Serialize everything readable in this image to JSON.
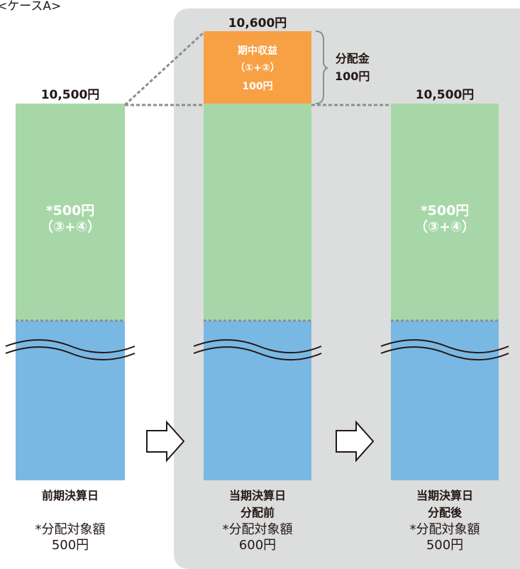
{
  "case_label": "<ケースA>",
  "columns": [
    {
      "top_amount": "10,500円",
      "green_label_line1": "*500円",
      "green_label_line2": "（③+④）",
      "caption_line1": "前期決算日",
      "caption_line2": "",
      "note_line1": "*分配対象額",
      "note_line2": "500円"
    },
    {
      "top_amount": "10,600円",
      "income_line1": "期中収益",
      "income_line2": "（①+②）",
      "income_line3": "100円",
      "caption_line1": "当期決算日",
      "caption_line2": "分配前",
      "note_line1": "*分配対象額",
      "note_line2": "600円"
    },
    {
      "top_amount": "10,500円",
      "green_label_line1": "*500円",
      "green_label_line2": "（③+④）",
      "caption_line1": "当期決算日",
      "caption_line2": "分配後",
      "note_line1": "*分配対象額",
      "note_line2": "500円"
    }
  ],
  "distribution": {
    "line1": "分配金",
    "line2": "100円"
  },
  "colors": {
    "panel": "#dcdddd",
    "green": "#a7d7a8",
    "blue": "#7ab8e4",
    "orange": "#f7a044",
    "dashed": "#8a8f93"
  }
}
